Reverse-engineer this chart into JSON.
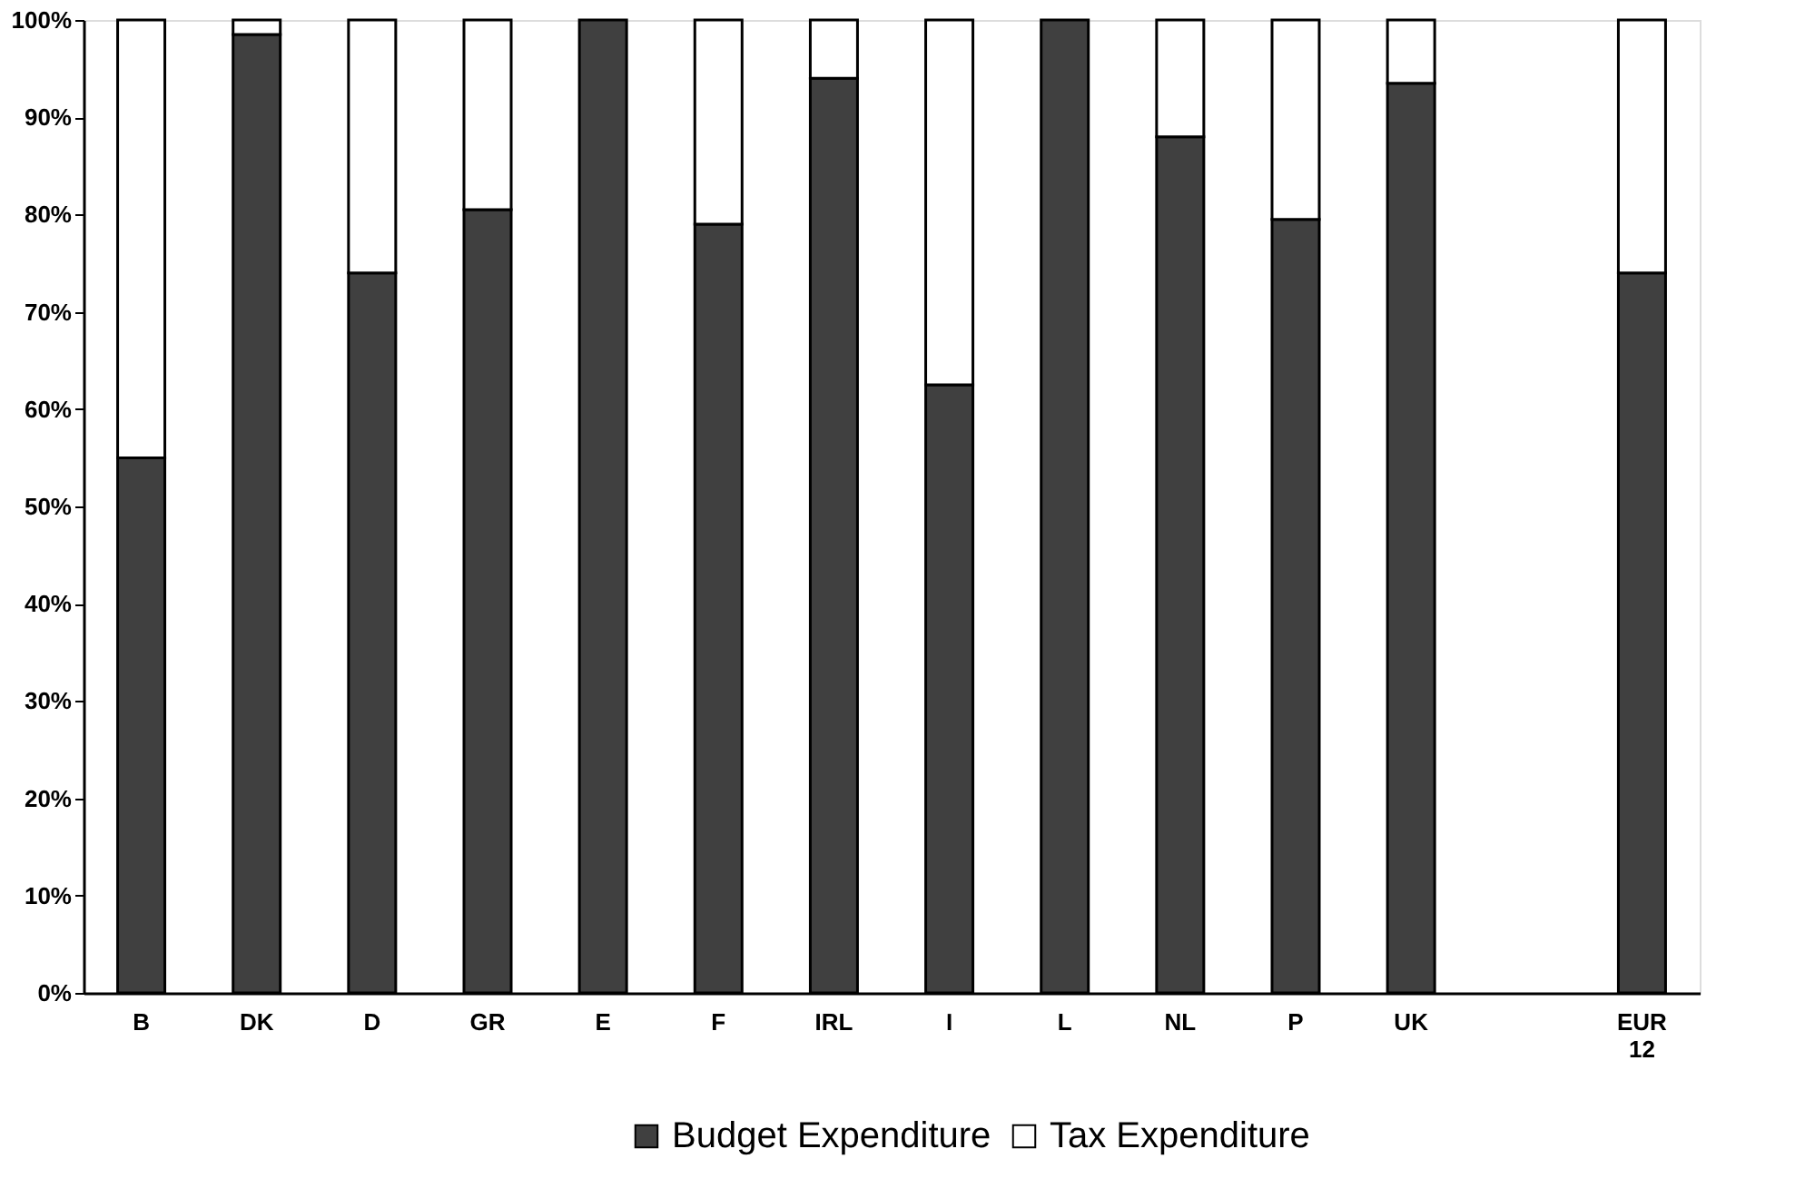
{
  "chart_data": {
    "type": "bar",
    "stacked": true,
    "categories": [
      "B",
      "DK",
      "D",
      "GR",
      "E",
      "F",
      "IRL",
      "I",
      "L",
      "NL",
      "P",
      "UK",
      null,
      "EUR 12"
    ],
    "series": [
      {
        "name": "Budget Expenditure",
        "color": "#404040",
        "values": [
          55,
          98.5,
          74,
          80.5,
          100,
          79,
          94,
          62.5,
          100,
          88,
          79.5,
          93.5,
          null,
          74
        ]
      },
      {
        "name": "Tax Expenditure",
        "color": "#ffffff",
        "values": [
          45,
          1.5,
          26,
          19.5,
          null,
          21,
          6,
          37.5,
          null,
          12,
          20.5,
          6.5,
          null,
          26
        ]
      }
    ],
    "ylim": [
      0,
      100
    ],
    "yticks": [
      {
        "value": 0,
        "label": "0%"
      },
      {
        "value": 10,
        "label": "10%"
      },
      {
        "value": 20,
        "label": "20%"
      },
      {
        "value": 30,
        "label": "30%"
      },
      {
        "value": 40,
        "label": "40%"
      },
      {
        "value": 50,
        "label": "50%"
      },
      {
        "value": 60,
        "label": "60%"
      },
      {
        "value": 70,
        "label": "70%"
      },
      {
        "value": 80,
        "label": "80%"
      },
      {
        "value": 90,
        "label": "90%"
      },
      {
        "value": 100,
        "label": "100%"
      }
    ],
    "grid": false,
    "legend": "bottom"
  }
}
